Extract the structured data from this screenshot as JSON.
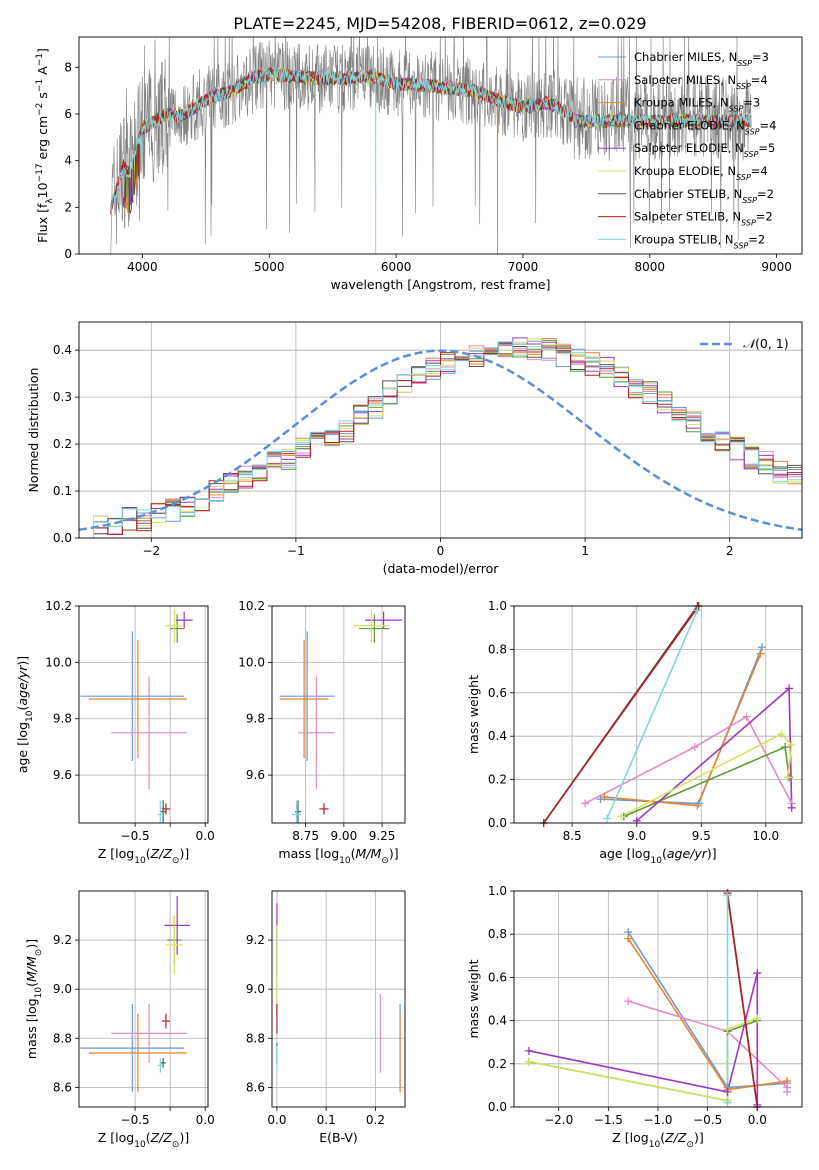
{
  "figure_title": "PLATE=2245, MJD=54208, FIBERID=0612, z=0.029",
  "colors": {
    "Chabrier MILES": "#6f9ad6",
    "Salpeter MILES": "#e28cc6",
    "Kroupa MILES": "#e8862c",
    "Chabrier ELODIE": "#5f9a3c",
    "Salpeter ELODIE": "#9f35c2",
    "Kroupa ELODIE": "#d9e15d",
    "Chabrier STELIB": "#555555",
    "Salpeter STELIB": "#b02020",
    "Kroupa STELIB": "#7fd7dc",
    "data": "#808080",
    "gaussian": "#5b8fd6"
  },
  "chart_data": [
    {
      "id": "spectrum",
      "type": "line",
      "xlabel": "wavelength [Angstrom, rest frame]",
      "ylabel": "Flux [f_λ10^-17 erg cm^-2 s^-1 A^-1]",
      "xlim": [
        3500,
        9200
      ],
      "ylim": [
        0,
        9.3
      ],
      "xticks": [
        4000,
        5000,
        6000,
        7000,
        8000,
        9000
      ],
      "yticks": [
        0,
        2,
        4,
        6,
        8
      ],
      "legend_loc": "upper right",
      "legend": [
        "Chabrier MILES, N_SSP=3",
        "Salpeter MILES, N_SSP=4",
        "Kroupa MILES, N_SSP=3",
        "Chabrier ELODIE, N_SSP=4",
        "Salpeter ELODIE, N_SSP=5",
        "Kroupa ELODIE, N_SSP=4",
        "Chabrier STELIB, N_SSP=2",
        "Salpeter STELIB, N_SSP=2",
        "Kroupa STELIB, N_SSP=2"
      ],
      "continuum": [
        [
          3750,
          2.0
        ],
        [
          3800,
          2.8
        ],
        [
          3850,
          3.8
        ],
        [
          3900,
          3.4
        ],
        [
          3950,
          4.5
        ],
        [
          4000,
          5.4
        ],
        [
          4100,
          5.7
        ],
        [
          4200,
          6.0
        ],
        [
          4300,
          5.9
        ],
        [
          4500,
          6.6
        ],
        [
          4700,
          7.0
        ],
        [
          4900,
          7.6
        ],
        [
          5000,
          7.7
        ],
        [
          5200,
          7.6
        ],
        [
          5500,
          7.5
        ],
        [
          5800,
          7.6
        ],
        [
          6000,
          7.3
        ],
        [
          6300,
          7.2
        ],
        [
          6600,
          7.0
        ],
        [
          6800,
          6.6
        ],
        [
          7000,
          6.3
        ],
        [
          7200,
          6.5
        ],
        [
          7400,
          5.9
        ]
      ],
      "data_xrange": [
        3750,
        8800
      ]
    },
    {
      "id": "residuals",
      "type": "histogram",
      "xlabel": "(data-model)/error",
      "ylabel": "Normed distribution",
      "xlim": [
        -2.5,
        2.5
      ],
      "ylim": [
        0,
        0.46
      ],
      "xticks": [
        -2,
        -1,
        0,
        1,
        2
      ],
      "yticks": [
        0,
        0.1,
        0.2,
        0.3,
        0.4
      ],
      "legend": [
        "N(0,1)"
      ],
      "bin_width": 0.1,
      "hist_mean": [
        0.02,
        0.03,
        0.03,
        0.04,
        0.04,
        0.05,
        0.06,
        0.07,
        0.08,
        0.1,
        0.12,
        0.13,
        0.14,
        0.16,
        0.17,
        0.19,
        0.21,
        0.22,
        0.23,
        0.26,
        0.28,
        0.31,
        0.33,
        0.34,
        0.36,
        0.37,
        0.38,
        0.39,
        0.4,
        0.4,
        0.41,
        0.4,
        0.4,
        0.39,
        0.38,
        0.37,
        0.36,
        0.34,
        0.32,
        0.31,
        0.29,
        0.27,
        0.25,
        0.23,
        0.21,
        0.19,
        0.17,
        0.16,
        0.14,
        0.13
      ]
    },
    {
      "id": "Z_vs_age",
      "type": "scatter",
      "xlabel": "Z [log10(Z/Z☉)]",
      "ylabel": "age [log10(age/yr)]",
      "xlim": [
        -0.9,
        0.02
      ],
      "ylim": [
        9.43,
        10.2
      ],
      "xticks": [
        -0.5,
        -0.25,
        0.0
      ],
      "xticklabels": [
        "−0.5",
        "",
        "0.0"
      ],
      "yticks": [
        9.6,
        9.8,
        10.0,
        10.2
      ],
      "points": [
        {
          "s": "Chabrier MILES",
          "x": -0.52,
          "y": 9.88,
          "xerr": 0.37,
          "yerr": 0.23
        },
        {
          "s": "Kroupa MILES",
          "x": -0.48,
          "y": 9.87,
          "xerr": 0.35,
          "yerr": 0.21
        },
        {
          "s": "Salpeter MILES",
          "x": -0.4,
          "y": 9.75,
          "xerr": 0.27,
          "yerr": 0.2
        },
        {
          "s": "Chabrier ELODIE",
          "x": -0.2,
          "y": 10.12,
          "xerr": 0.05,
          "yerr": 0.05
        },
        {
          "s": "Salpeter ELODIE",
          "x": -0.15,
          "y": 10.15,
          "xerr": 0.06,
          "yerr": 0.03
        },
        {
          "s": "Kroupa ELODIE",
          "x": -0.22,
          "y": 10.13,
          "xerr": 0.06,
          "yerr": 0.06
        },
        {
          "s": "Chabrier STELIB",
          "x": -0.3,
          "y": 9.47,
          "xerr": 0.02,
          "yerr": 0.04
        },
        {
          "s": "Salpeter STELIB",
          "x": -0.28,
          "y": 9.48,
          "xerr": 0.03,
          "yerr": 0.02
        },
        {
          "s": "Kroupa STELIB",
          "x": -0.32,
          "y": 9.46,
          "xerr": 0.02,
          "yerr": 0.05
        }
      ]
    },
    {
      "id": "mass_vs_age",
      "type": "scatter",
      "xlabel": "mass [log10(M/M☉)]",
      "ylabel": "",
      "xlim": [
        8.53,
        9.4
      ],
      "ylim": [
        9.43,
        10.2
      ],
      "xticks": [
        8.75,
        9.0,
        9.25
      ],
      "yticks": [
        9.6,
        9.8,
        10.0,
        10.2
      ],
      "points": [
        {
          "s": "Chabrier MILES",
          "x": 8.76,
          "y": 9.88,
          "xerr": 0.18,
          "yerr": 0.23
        },
        {
          "s": "Kroupa MILES",
          "x": 8.74,
          "y": 9.87,
          "xerr": 0.16,
          "yerr": 0.21
        },
        {
          "s": "Salpeter MILES",
          "x": 8.82,
          "y": 9.75,
          "xerr": 0.12,
          "yerr": 0.2
        },
        {
          "s": "Chabrier ELODIE",
          "x": 9.2,
          "y": 10.12,
          "xerr": 0.1,
          "yerr": 0.05
        },
        {
          "s": "Salpeter ELODIE",
          "x": 9.26,
          "y": 10.15,
          "xerr": 0.12,
          "yerr": 0.03
        },
        {
          "s": "Kroupa ELODIE",
          "x": 9.18,
          "y": 10.13,
          "xerr": 0.12,
          "yerr": 0.06
        },
        {
          "s": "Chabrier STELIB",
          "x": 8.7,
          "y": 9.47,
          "xerr": 0.02,
          "yerr": 0.04
        },
        {
          "s": "Salpeter STELIB",
          "x": 8.87,
          "y": 9.48,
          "xerr": 0.03,
          "yerr": 0.02
        },
        {
          "s": "Kroupa STELIB",
          "x": 8.69,
          "y": 9.46,
          "xerr": 0.03,
          "yerr": 0.05
        }
      ]
    },
    {
      "id": "age_vs_weight",
      "type": "line",
      "xlabel": "age [log10(age/yr)]",
      "ylabel": "mass weight",
      "xlim": [
        8.05,
        10.28
      ],
      "ylim": [
        0,
        1.0
      ],
      "xticks": [
        8.5,
        9.0,
        9.5,
        10.0
      ],
      "yticks": [
        0,
        0.2,
        0.4,
        0.6,
        0.8,
        1.0
      ],
      "series": [
        {
          "s": "Chabrier MILES",
          "pts": [
            [
              8.72,
              0.11
            ],
            [
              9.48,
              0.09
            ],
            [
              9.97,
              0.81
            ]
          ]
        },
        {
          "s": "Kroupa MILES",
          "pts": [
            [
              8.75,
              0.12
            ],
            [
              9.47,
              0.08
            ],
            [
              9.96,
              0.78
            ]
          ]
        },
        {
          "s": "Salpeter MILES",
          "pts": [
            [
              8.6,
              0.09
            ],
            [
              9.45,
              0.35
            ],
            [
              9.85,
              0.49
            ],
            [
              10.2,
              0.09
            ]
          ]
        },
        {
          "s": "Chabrier ELODIE",
          "pts": [
            [
              8.9,
              0.03
            ],
            [
              10.15,
              0.35
            ],
            [
              10.18,
              0.21
            ]
          ]
        },
        {
          "s": "Salpeter ELODIE",
          "pts": [
            [
              9.0,
              0.01
            ],
            [
              10.18,
              0.62
            ],
            [
              10.2,
              0.07
            ]
          ]
        },
        {
          "s": "Kroupa ELODIE",
          "pts": [
            [
              8.88,
              0.03
            ],
            [
              10.12,
              0.41
            ],
            [
              10.2,
              0.36
            ],
            [
              10.17,
              0.21
            ]
          ]
        },
        {
          "s": "Chabrier STELIB",
          "pts": [
            [
              8.28,
              0.0
            ],
            [
              9.47,
              1.0
            ]
          ]
        },
        {
          "s": "Salpeter STELIB",
          "pts": [
            [
              8.28,
              0.0
            ],
            [
              9.48,
              1.0
            ]
          ]
        },
        {
          "s": "Kroupa STELIB",
          "pts": [
            [
              8.77,
              0.02
            ],
            [
              9.47,
              0.98
            ]
          ]
        }
      ]
    },
    {
      "id": "Z_vs_mass",
      "type": "scatter",
      "xlabel": "Z [log10(Z/Z☉)]",
      "ylabel": "mass [log10(M/M☉)]",
      "xlim": [
        -0.9,
        0.02
      ],
      "ylim": [
        8.52,
        9.4
      ],
      "xticks": [
        -0.5,
        -0.25,
        0.0
      ],
      "xticklabels": [
        "−0.5",
        "",
        "0.0"
      ],
      "yticks": [
        8.6,
        8.8,
        9.0,
        9.2
      ],
      "points": [
        {
          "s": "Chabrier MILES",
          "x": -0.52,
          "y": 8.76,
          "xerr": 0.37,
          "yerr": 0.18
        },
        {
          "s": "Kroupa MILES",
          "x": -0.48,
          "y": 8.74,
          "xerr": 0.35,
          "yerr": 0.16
        },
        {
          "s": "Salpeter MILES",
          "x": -0.4,
          "y": 8.82,
          "xerr": 0.27,
          "yerr": 0.12
        },
        {
          "s": "Chabrier ELODIE",
          "x": -0.22,
          "y": 9.2,
          "xerr": 0.05,
          "yerr": 0.1
        },
        {
          "s": "Salpeter ELODIE",
          "x": -0.2,
          "y": 9.26,
          "xerr": 0.09,
          "yerr": 0.12
        },
        {
          "s": "Kroupa ELODIE",
          "x": -0.22,
          "y": 9.18,
          "xerr": 0.06,
          "yerr": 0.12
        },
        {
          "s": "Chabrier STELIB",
          "x": -0.3,
          "y": 8.7,
          "xerr": 0.02,
          "yerr": 0.02
        },
        {
          "s": "Salpeter STELIB",
          "x": -0.28,
          "y": 8.87,
          "xerr": 0.03,
          "yerr": 0.03
        },
        {
          "s": "Kroupa STELIB",
          "x": -0.32,
          "y": 8.69,
          "xerr": 0.02,
          "yerr": 0.03
        }
      ]
    },
    {
      "id": "ebv_vs_mass",
      "type": "scatter",
      "xlabel": "E(B-V)",
      "ylabel": "",
      "xlim": [
        -0.01,
        0.26
      ],
      "ylim": [
        8.52,
        9.4
      ],
      "xticks": [
        0.0,
        0.1,
        0.2
      ],
      "yticks": [
        8.6,
        8.8,
        9.0,
        9.2
      ],
      "points": [
        {
          "s": "Chabrier MILES",
          "x": 0.25,
          "y": 8.76,
          "xerr": 0,
          "yerr": 0.18
        },
        {
          "s": "Kroupa MILES",
          "x": 0.25,
          "y": 8.74,
          "xerr": 0,
          "yerr": 0.16
        },
        {
          "s": "Salpeter MILES",
          "x": 0.21,
          "y": 8.82,
          "xerr": 0,
          "yerr": 0.16
        },
        {
          "s": "Chabrier ELODIE",
          "x": 0.0,
          "y": 9.1,
          "xerr": 0,
          "yerr": 0.15
        },
        {
          "s": "Salpeter ELODIE",
          "x": 0.0,
          "y": 9.2,
          "xerr": 0,
          "yerr": 0.15
        },
        {
          "s": "Kroupa ELODIE",
          "x": 0.0,
          "y": 9.08,
          "xerr": 0,
          "yerr": 0.18
        },
        {
          "s": "Chabrier STELIB",
          "x": 0.0,
          "y": 8.74,
          "xerr": 0,
          "yerr": 0.04
        },
        {
          "s": "Salpeter STELIB",
          "x": 0.0,
          "y": 8.88,
          "xerr": 0,
          "yerr": 0.06
        },
        {
          "s": "Kroupa STELIB",
          "x": 0.0,
          "y": 8.72,
          "xerr": 0,
          "yerr": 0.05
        }
      ]
    },
    {
      "id": "Z_vs_weight",
      "type": "line",
      "xlabel": "Z [log10(Z/Z☉)]",
      "ylabel": "mass weight",
      "xlim": [
        -2.45,
        0.45
      ],
      "ylim": [
        0,
        1.0
      ],
      "xticks": [
        -2.0,
        -1.5,
        -1.0,
        -0.5,
        0.0
      ],
      "yticks": [
        0,
        0.2,
        0.4,
        0.6,
        0.8,
        1.0
      ],
      "series": [
        {
          "s": "Chabrier MILES",
          "pts": [
            [
              -1.3,
              0.81
            ],
            [
              -0.3,
              0.09
            ],
            [
              0.3,
              0.11
            ]
          ]
        },
        {
          "s": "Kroupa MILES",
          "pts": [
            [
              -1.3,
              0.78
            ],
            [
              -0.3,
              0.08
            ],
            [
              0.3,
              0.12
            ]
          ]
        },
        {
          "s": "Salpeter MILES",
          "pts": [
            [
              -1.3,
              0.49
            ],
            [
              -0.3,
              0.35
            ],
            [
              0.3,
              0.09
            ],
            [
              0.3,
              0.07
            ]
          ]
        },
        {
          "s": "Chabrier ELODIE",
          "pts": [
            [
              -2.3,
              0.21
            ],
            [
              -0.3,
              0.03
            ],
            [
              -0.3,
              0.35
            ],
            [
              0.0,
              0.4
            ]
          ]
        },
        {
          "s": "Salpeter ELODIE",
          "pts": [
            [
              -2.3,
              0.26
            ],
            [
              -0.3,
              0.07
            ],
            [
              0.0,
              0.62
            ],
            [
              0.0,
              0.01
            ]
          ]
        },
        {
          "s": "Kroupa ELODIE",
          "pts": [
            [
              -2.3,
              0.21
            ],
            [
              -0.3,
              0.03
            ],
            [
              -0.3,
              0.36
            ],
            [
              0.0,
              0.41
            ]
          ]
        },
        {
          "s": "Chabrier STELIB",
          "pts": [
            [
              -0.3,
              0.98
            ],
            [
              0.0,
              0.0
            ]
          ]
        },
        {
          "s": "Salpeter STELIB",
          "pts": [
            [
              -0.3,
              0.99
            ],
            [
              0.0,
              0.0
            ]
          ]
        },
        {
          "s": "Kroupa STELIB",
          "pts": [
            [
              -0.3,
              0.98
            ],
            [
              -0.3,
              0.02
            ]
          ]
        }
      ]
    }
  ]
}
